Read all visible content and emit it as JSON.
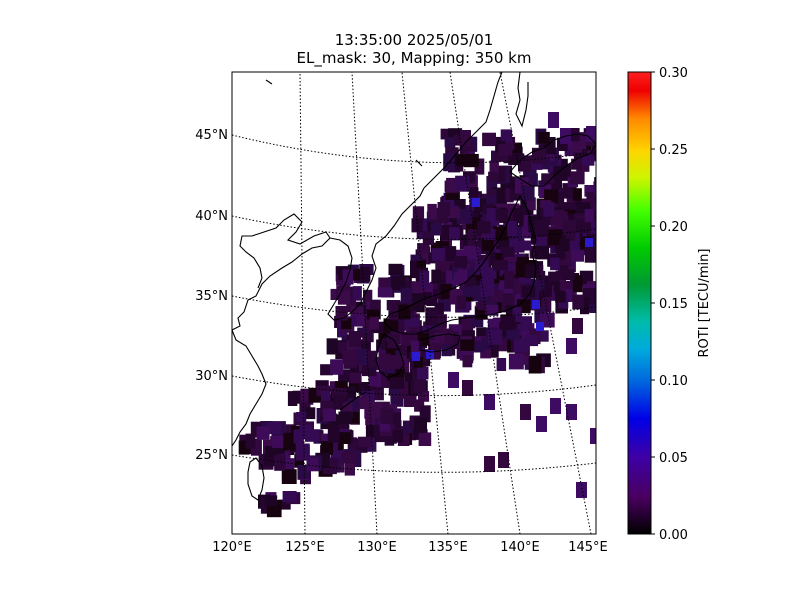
{
  "title": {
    "line1": "13:35:00 2025/05/01",
    "line2": "EL_mask: 30, Mapping: 350 km"
  },
  "map": {
    "lon_range": [
      120,
      145
    ],
    "lat_range": [
      20,
      49
    ],
    "lat_labels": [
      "25°N",
      "30°N",
      "35°N",
      "40°N",
      "45°N"
    ],
    "lon_labels": [
      "120°E",
      "125°E",
      "130°E",
      "135°E",
      "140°E",
      "145°E"
    ],
    "gridlines": "dotted",
    "coastlines": "black"
  },
  "colorbar": {
    "label": "ROTI [TECU/min]",
    "colormap": "nipy_spectral",
    "range": [
      0.0,
      0.3
    ],
    "ticks": [
      "0.00",
      "0.05",
      "0.10",
      "0.15",
      "0.20",
      "0.25",
      "0.30"
    ]
  },
  "chart_data": {
    "type": "heatmap",
    "title": "13:35:00 2025/05/01\nEL_mask: 30, Mapping: 350 km",
    "xlabel": "",
    "ylabel": "",
    "value_label": "ROTI [TECU/min]",
    "vmin": 0.0,
    "vmax": 0.3,
    "typical_value": 0.03,
    "max_value_observed": 0.06,
    "notes_on_distribution": "ROTI values mostly 0.01-0.04 TECU/min over Japan, Korea, East China Sea and Ryukyu region; isolated blue patches near 0.05-0.06"
  }
}
